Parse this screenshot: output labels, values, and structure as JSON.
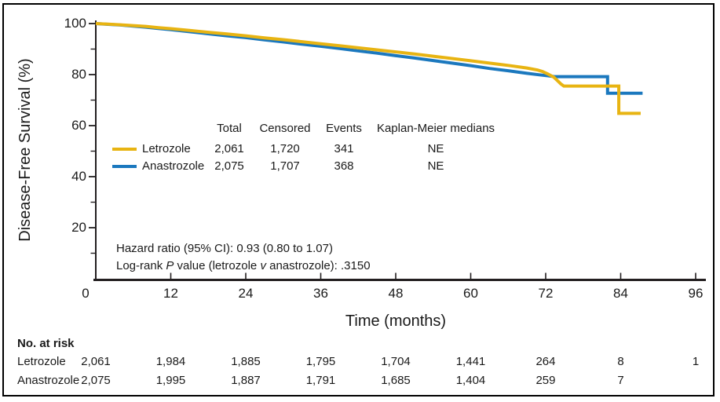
{
  "chart_data": {
    "type": "line",
    "subtype": "kaplan_meier_survival",
    "title": "",
    "xlabel": "Time (months)",
    "ylabel": "Disease-Free Survival (%)",
    "xlim": [
      0,
      96
    ],
    "ylim": [
      0,
      100
    ],
    "x_ticks": [
      0,
      12,
      24,
      36,
      48,
      60,
      72,
      84,
      96
    ],
    "y_ticks_major": [
      100,
      80,
      60,
      40,
      20
    ],
    "y_ticks_minor": [
      90,
      70,
      50,
      30,
      10
    ],
    "grid": false,
    "legend_position": "inside-middle-left",
    "axis_color": "#231f20",
    "series": [
      {
        "name": "Anastrozole",
        "color": "#1b78be",
        "points": [
          [
            0,
            100
          ],
          [
            2,
            99.7
          ],
          [
            4,
            99.4
          ],
          [
            6,
            99.0
          ],
          [
            8,
            98.6
          ],
          [
            10,
            98.1
          ],
          [
            12,
            97.6
          ],
          [
            15,
            96.8
          ],
          [
            18,
            96.0
          ],
          [
            21,
            95.2
          ],
          [
            24,
            94.5
          ],
          [
            27,
            93.6
          ],
          [
            30,
            92.8
          ],
          [
            33,
            91.9
          ],
          [
            36,
            91.1
          ],
          [
            39,
            90.2
          ],
          [
            42,
            89.3
          ],
          [
            45,
            88.4
          ],
          [
            48,
            87.4
          ],
          [
            51,
            86.5
          ],
          [
            54,
            85.5
          ],
          [
            57,
            84.5
          ],
          [
            60,
            83.5
          ],
          [
            63,
            82.4
          ],
          [
            66,
            81.5
          ],
          [
            69,
            80.5
          ],
          [
            71,
            79.9
          ],
          [
            72.5,
            79.5
          ],
          [
            73.4,
            79.2
          ],
          [
            81.9,
            79.2
          ],
          [
            81.9,
            72.7
          ],
          [
            87.5,
            72.7
          ]
        ]
      },
      {
        "name": "Letrozole",
        "color": "#e8b412",
        "points": [
          [
            0,
            100
          ],
          [
            2,
            99.8
          ],
          [
            4,
            99.5
          ],
          [
            6,
            99.2
          ],
          [
            8,
            98.9
          ],
          [
            10,
            98.4
          ],
          [
            12,
            98.0
          ],
          [
            15,
            97.3
          ],
          [
            18,
            96.6
          ],
          [
            21,
            95.9
          ],
          [
            24,
            95.2
          ],
          [
            27,
            94.4
          ],
          [
            30,
            93.7
          ],
          [
            33,
            92.9
          ],
          [
            36,
            92.1
          ],
          [
            39,
            91.3
          ],
          [
            42,
            90.5
          ],
          [
            45,
            89.7
          ],
          [
            48,
            88.9
          ],
          [
            51,
            88.1
          ],
          [
            54,
            87.2
          ],
          [
            57,
            86.3
          ],
          [
            60,
            85.4
          ],
          [
            63,
            84.5
          ],
          [
            66,
            83.6
          ],
          [
            69,
            82.6
          ],
          [
            70.7,
            81.8
          ],
          [
            71.5,
            81.2
          ],
          [
            72.3,
            80.3
          ],
          [
            73.3,
            79.0
          ],
          [
            73.9,
            77.6
          ],
          [
            74.4,
            76.4
          ],
          [
            74.9,
            75.5
          ],
          [
            83.7,
            75.5
          ],
          [
            83.7,
            64.8
          ],
          [
            87.2,
            64.8
          ]
        ]
      }
    ],
    "summary_table": {
      "headers": [
        "Total",
        "Censored",
        "Events",
        "Kaplan-Meier medians"
      ],
      "rows": [
        {
          "name": "Letrozole",
          "color": "#e8b412",
          "values": [
            "2,061",
            "1,720",
            "341",
            "NE"
          ]
        },
        {
          "name": "Anastrozole",
          "color": "#1b78be",
          "values": [
            "2,075",
            "1,707",
            "368",
            "NE"
          ]
        }
      ]
    },
    "stats": {
      "hazard_ratio_line": "Hazard ratio (95% CI): 0.93 (0.80 to 1.07)",
      "logrank": {
        "p1": "Log-rank ",
        "p_italic": "P",
        "p2": " value (letrozole ",
        "v_italic": "v",
        "p3": " anastrozole): .3150"
      }
    },
    "risk_table": {
      "title": "No. at risk",
      "time_points": [
        0,
        12,
        24,
        36,
        48,
        60,
        72,
        84,
        96
      ],
      "rows": [
        {
          "name": "Letrozole",
          "values": [
            "2,061",
            "1,984",
            "1,885",
            "1,795",
            "1,704",
            "1,441",
            "264",
            "8",
            "1"
          ]
        },
        {
          "name": "Anastrozole",
          "values": [
            "2,075",
            "1,995",
            "1,887",
            "1,791",
            "1,685",
            "1,404",
            "259",
            "7",
            ""
          ]
        }
      ]
    }
  }
}
